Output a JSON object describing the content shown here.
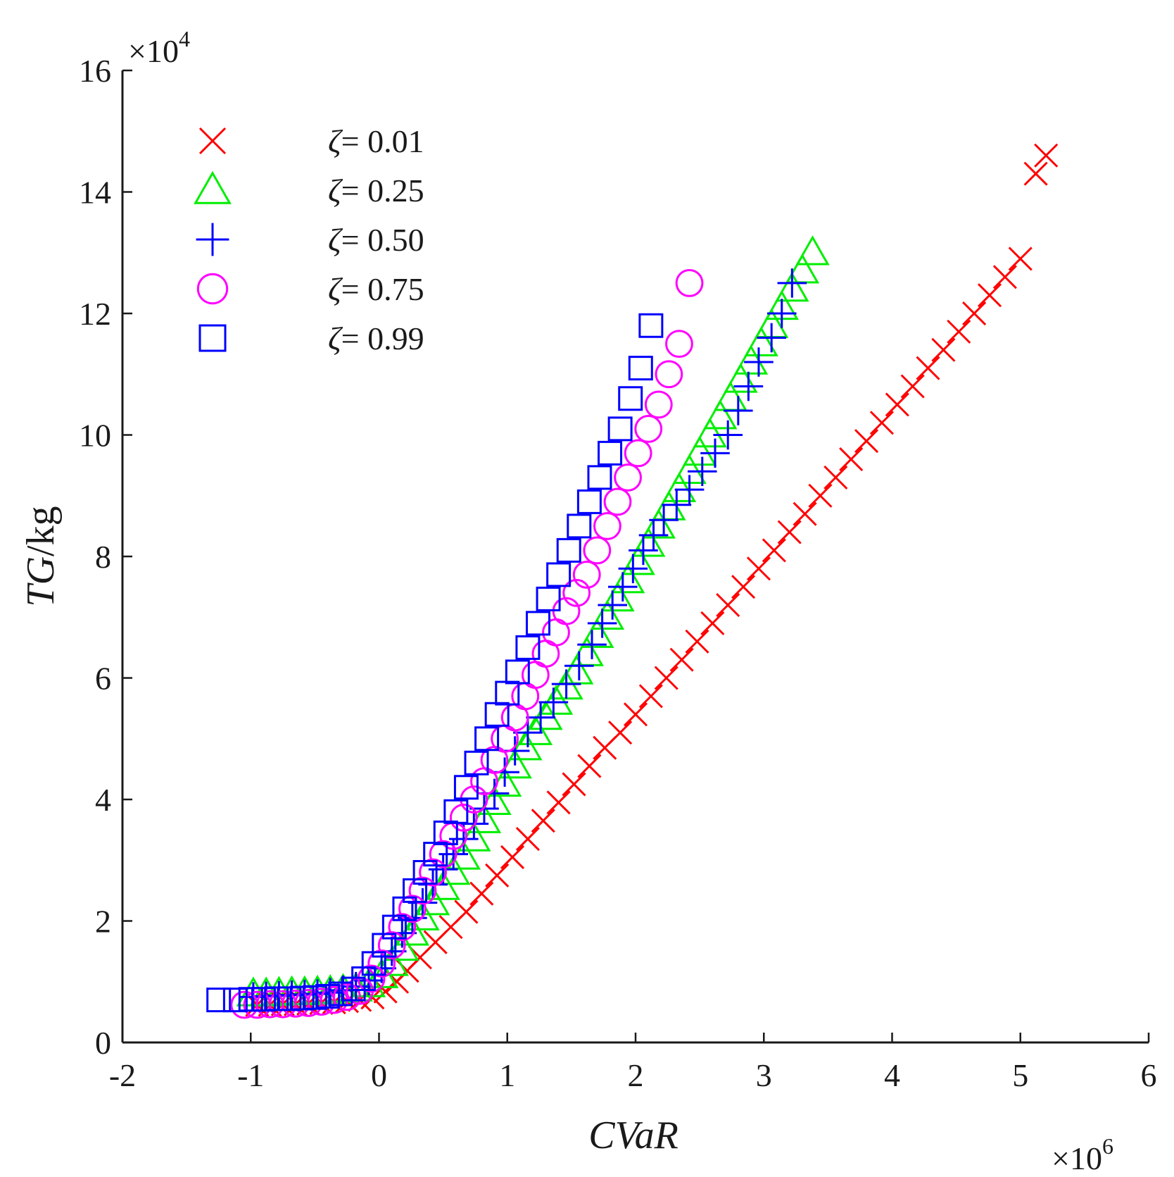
{
  "chart_data": {
    "type": "scatter",
    "title": "",
    "xlabel": "CVaR",
    "ylabel_italic": "TG",
    "ylabel_unit": "/kg",
    "x_multiplier": "×10",
    "x_multiplier_exp": "6",
    "y_multiplier": "×10",
    "y_multiplier_exp": "4",
    "xlim": [
      -2,
      6
    ],
    "ylim": [
      0,
      16
    ],
    "xticks": [
      -2,
      -1,
      0,
      1,
      2,
      3,
      4,
      5,
      6
    ],
    "yticks": [
      0,
      2,
      4,
      6,
      8,
      10,
      12,
      14,
      16
    ],
    "xtick_labels": [
      "-2",
      "-1",
      "0",
      "1",
      "2",
      "3",
      "4",
      "5",
      "6"
    ],
    "ytick_labels": [
      "0",
      "2",
      "4",
      "6",
      "8",
      "10",
      "12",
      "14",
      "16"
    ],
    "grid": false,
    "legend_position": "top-left",
    "series": [
      {
        "name": "ζ= 0.01",
        "zeta_symbol": "ζ",
        "value_text": "= 0.01",
        "marker": "x",
        "color": "#ff0000",
        "x": [
          -0.95,
          -0.85,
          -0.75,
          -0.65,
          -0.55,
          -0.45,
          -0.35,
          -0.25,
          -0.15,
          -0.05,
          0.05,
          0.14,
          0.22,
          0.32,
          0.44,
          0.56,
          0.68,
          0.8,
          0.92,
          1.04,
          1.16,
          1.28,
          1.4,
          1.52,
          1.64,
          1.76,
          1.88,
          2.0,
          2.12,
          2.24,
          2.36,
          2.48,
          2.6,
          2.72,
          2.84,
          2.96,
          3.08,
          3.2,
          3.32,
          3.44,
          3.56,
          3.68,
          3.8,
          3.92,
          4.04,
          4.16,
          4.28,
          4.4,
          4.52,
          4.64,
          4.76,
          4.88,
          5.0,
          5.12,
          5.2
        ],
        "y": [
          0.62,
          0.62,
          0.63,
          0.63,
          0.64,
          0.65,
          0.66,
          0.68,
          0.7,
          0.74,
          0.84,
          1.0,
          1.18,
          1.4,
          1.65,
          1.9,
          2.15,
          2.45,
          2.75,
          3.05,
          3.35,
          3.65,
          3.95,
          4.25,
          4.55,
          4.85,
          5.1,
          5.4,
          5.7,
          6.0,
          6.3,
          6.6,
          6.9,
          7.2,
          7.5,
          7.8,
          8.1,
          8.4,
          8.7,
          9.0,
          9.3,
          9.6,
          9.9,
          10.2,
          10.5,
          10.8,
          11.1,
          11.4,
          11.7,
          12.0,
          12.3,
          12.6,
          12.9,
          14.3,
          14.6
        ]
      },
      {
        "name": "ζ= 0.25",
        "zeta_symbol": "ζ",
        "value_text": "= 0.25",
        "marker": "triangle",
        "color": "#00ee00",
        "x": [
          -0.98,
          -0.88,
          -0.78,
          -0.68,
          -0.58,
          -0.48,
          -0.38,
          -0.28,
          -0.18,
          -0.08,
          0.02,
          0.1,
          0.18,
          0.26,
          0.34,
          0.42,
          0.5,
          0.58,
          0.66,
          0.74,
          0.82,
          0.9,
          0.98,
          1.06,
          1.14,
          1.22,
          1.3,
          1.38,
          1.46,
          1.54,
          1.62,
          1.7,
          1.78,
          1.86,
          1.94,
          2.02,
          2.1,
          2.18,
          2.26,
          2.34,
          2.42,
          2.5,
          2.58,
          2.66,
          2.74,
          2.82,
          2.9,
          2.98,
          3.06,
          3.14,
          3.22,
          3.3,
          3.38
        ],
        "y": [
          0.8,
          0.8,
          0.81,
          0.82,
          0.82,
          0.83,
          0.84,
          0.86,
          0.88,
          0.95,
          1.1,
          1.3,
          1.55,
          1.8,
          2.05,
          2.3,
          2.55,
          2.8,
          3.05,
          3.35,
          3.65,
          3.95,
          4.25,
          4.55,
          4.85,
          5.1,
          5.35,
          5.6,
          5.85,
          6.1,
          6.4,
          6.7,
          7.0,
          7.3,
          7.6,
          7.9,
          8.2,
          8.5,
          8.8,
          9.1,
          9.4,
          9.7,
          10.0,
          10.3,
          10.6,
          10.9,
          11.2,
          11.5,
          11.8,
          12.1,
          12.4,
          12.7,
          13.0
        ]
      },
      {
        "name": "ζ= 0.50",
        "zeta_symbol": "ζ",
        "value_text": "= 0.50",
        "marker": "plus",
        "color": "#0000ff",
        "x": [
          -0.98,
          -0.88,
          -0.78,
          -0.68,
          -0.58,
          -0.48,
          -0.38,
          -0.28,
          -0.18,
          -0.08,
          0.02,
          0.1,
          0.18,
          0.26,
          0.34,
          0.42,
          0.5,
          0.58,
          0.66,
          0.74,
          0.82,
          0.9,
          0.98,
          1.06,
          1.16,
          1.26,
          1.36,
          1.46,
          1.56,
          1.66,
          1.74,
          1.82,
          1.9,
          1.98,
          2.06,
          2.14,
          2.22,
          2.32,
          2.42,
          2.52,
          2.62,
          2.72,
          2.8,
          2.88,
          2.96,
          3.06,
          3.14,
          3.22
        ],
        "y": [
          0.75,
          0.76,
          0.77,
          0.78,
          0.79,
          0.8,
          0.82,
          0.86,
          0.92,
          1.02,
          1.22,
          1.5,
          1.8,
          2.05,
          2.3,
          2.6,
          2.85,
          3.1,
          3.35,
          3.6,
          3.85,
          4.1,
          4.45,
          4.8,
          5.1,
          5.35,
          5.6,
          5.9,
          6.2,
          6.55,
          6.9,
          7.2,
          7.5,
          7.8,
          8.1,
          8.35,
          8.6,
          8.85,
          9.1,
          9.4,
          9.7,
          10.0,
          10.4,
          10.8,
          11.2,
          11.6,
          12.0,
          12.5
        ]
      },
      {
        "name": "ζ= 0.75",
        "zeta_symbol": "ζ",
        "value_text": "= 0.75",
        "marker": "circle",
        "color": "#ff00ff",
        "x": [
          -1.05,
          -0.95,
          -0.85,
          -0.75,
          -0.65,
          -0.55,
          -0.45,
          -0.35,
          -0.25,
          -0.15,
          -0.06,
          0.02,
          0.1,
          0.18,
          0.26,
          0.34,
          0.42,
          0.5,
          0.58,
          0.66,
          0.74,
          0.82,
          0.9,
          0.98,
          1.06,
          1.14,
          1.22,
          1.3,
          1.38,
          1.46,
          1.54,
          1.62,
          1.7,
          1.78,
          1.86,
          1.94,
          2.02,
          2.1,
          2.18,
          2.26,
          2.34,
          2.42
        ],
        "y": [
          0.62,
          0.62,
          0.63,
          0.63,
          0.64,
          0.65,
          0.67,
          0.7,
          0.75,
          0.85,
          1.05,
          1.3,
          1.6,
          1.9,
          2.2,
          2.5,
          2.8,
          3.1,
          3.4,
          3.7,
          4.0,
          4.3,
          4.65,
          5.0,
          5.35,
          5.7,
          6.05,
          6.4,
          6.75,
          7.1,
          7.4,
          7.7,
          8.1,
          8.5,
          8.9,
          9.3,
          9.7,
          10.1,
          10.5,
          11.0,
          11.5,
          12.5
        ]
      },
      {
        "name": "ζ= 0.99",
        "zeta_symbol": "ζ",
        "value_text": "= 0.99",
        "marker": "square",
        "color": "#0000ff",
        "x": [
          -1.25,
          -1.12,
          -1.0,
          -0.9,
          -0.8,
          -0.7,
          -0.6,
          -0.5,
          -0.4,
          -0.3,
          -0.2,
          -0.12,
          -0.04,
          0.04,
          0.12,
          0.2,
          0.28,
          0.36,
          0.44,
          0.52,
          0.6,
          0.68,
          0.76,
          0.84,
          0.92,
          1.0,
          1.08,
          1.16,
          1.24,
          1.32,
          1.4,
          1.48,
          1.56,
          1.64,
          1.72,
          1.8,
          1.88,
          1.96,
          2.04,
          2.12
        ],
        "y": [
          0.7,
          0.7,
          0.71,
          0.71,
          0.72,
          0.72,
          0.73,
          0.74,
          0.76,
          0.8,
          0.88,
          1.05,
          1.3,
          1.6,
          1.9,
          2.2,
          2.5,
          2.8,
          3.1,
          3.45,
          3.8,
          4.2,
          4.6,
          5.0,
          5.4,
          5.75,
          6.1,
          6.5,
          6.9,
          7.3,
          7.7,
          8.1,
          8.5,
          8.9,
          9.3,
          9.7,
          10.1,
          10.6,
          11.1,
          11.8
        ]
      }
    ]
  }
}
